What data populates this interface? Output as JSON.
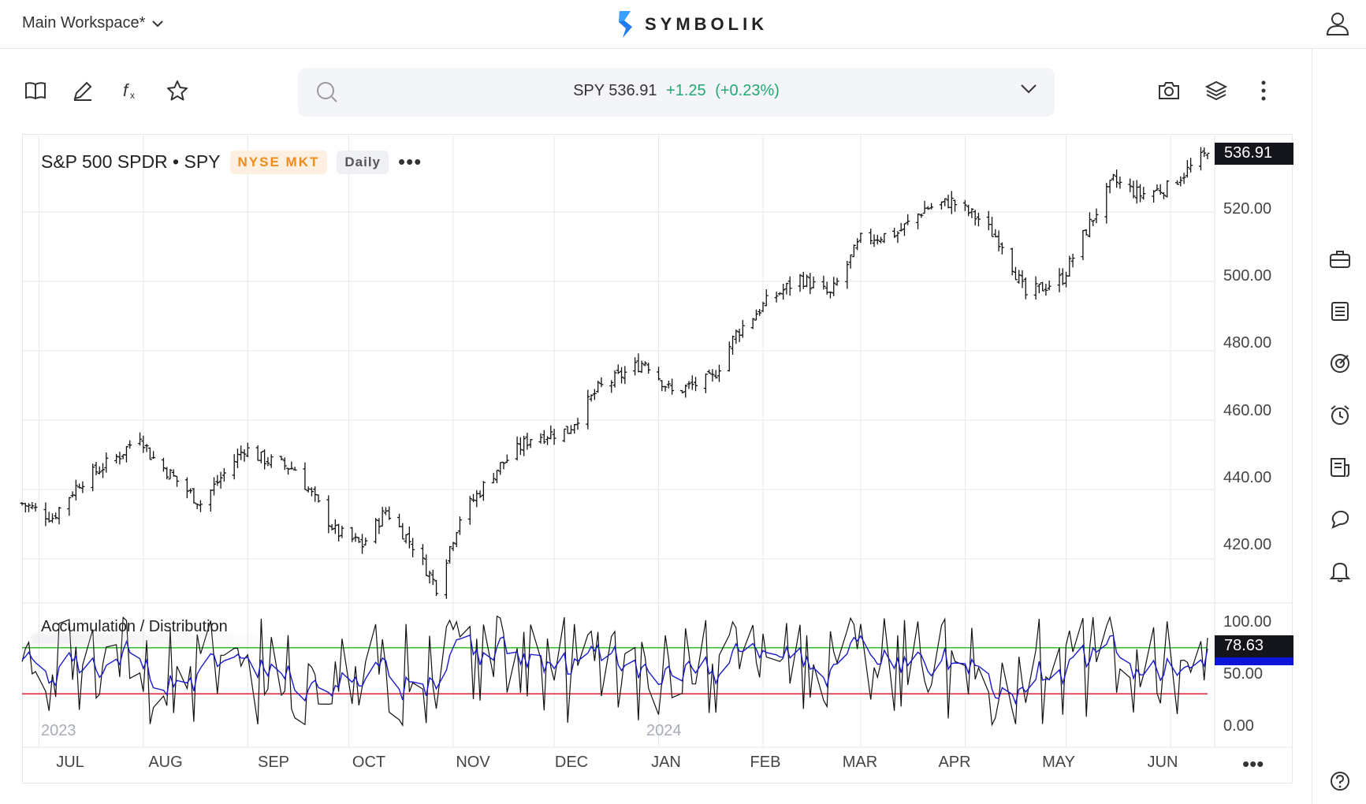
{
  "header": {
    "workspace": "Main Workspace*",
    "logo_text": "SYMBOLIK",
    "icons": {
      "user": "user-icon",
      "workspace_dropdown": "chevron-down-icon",
      "logo": "symbolik-logo-icon"
    }
  },
  "toolbar": {
    "left_tools": [
      "book-icon",
      "pencil-icon",
      "function-icon",
      "star-icon"
    ],
    "search": {
      "icon": "search-icon",
      "symbol": "SPY",
      "price": "536.91",
      "change": "+1.25",
      "change_pct": "(+0.23%)",
      "dropdown": "chevron-down-icon"
    },
    "right_tools": [
      "camera-icon",
      "layers-icon",
      "more-vertical-icon"
    ]
  },
  "sidebar_right": {
    "icons": [
      "briefcase-icon",
      "list-icon",
      "target-icon",
      "alarm-icon",
      "news-icon",
      "chat-icon",
      "bell-icon",
      "help-icon"
    ]
  },
  "chart": {
    "title": "S&P 500 SPDR • SPY",
    "exchange": "NYSE MKT",
    "interval": "Daily",
    "more": "•••",
    "last_price_label": "536.91",
    "price_ticks": [
      "520.00",
      "500.00",
      "480.00",
      "460.00",
      "440.00",
      "420.00"
    ],
    "oscillator": {
      "title": "Accumulation / Distribution",
      "ticks": [
        "100.00",
        "50.00",
        "0.00"
      ],
      "last_value": "78.63",
      "partial_value": "69.15",
      "upper_level": 70,
      "lower_level": 30
    },
    "years": [
      "2023",
      "2024"
    ],
    "months": [
      "JUL",
      "AUG",
      "SEP",
      "OCT",
      "NOV",
      "DEC",
      "JAN",
      "FEB",
      "MAR",
      "APR",
      "MAY",
      "JUN"
    ],
    "axis_more": "•••",
    "colors": {
      "bars": "#111111",
      "osc_line": "#111111",
      "osc_signal": "#1a1acc",
      "upper": "#33bb33",
      "lower": "#dd2233",
      "grid": "#e6e8ef"
    }
  },
  "chart_data": [
    {
      "type": "ohlc",
      "title": "S&P 500 SPDR • SPY",
      "x_range": [
        "2023-06-26",
        "2024-06-12"
      ],
      "ylim": [
        408,
        542
      ],
      "last": 536.91,
      "close_path": [
        [
          "2023-06-26",
          436
        ],
        [
          "2023-07-05",
          432
        ],
        [
          "2023-07-13",
          442
        ],
        [
          "2023-07-25",
          450
        ],
        [
          "2023-07-31",
          456
        ],
        [
          "2023-08-03",
          450
        ],
        [
          "2023-08-18",
          436
        ],
        [
          "2023-08-31",
          452
        ],
        [
          "2023-09-05",
          449
        ],
        [
          "2023-09-15",
          446
        ],
        [
          "2023-09-27",
          428
        ],
        [
          "2023-10-05",
          424
        ],
        [
          "2023-10-12",
          434
        ],
        [
          "2023-10-20",
          424
        ],
        [
          "2023-10-27",
          412
        ],
        [
          "2023-11-03",
          432
        ],
        [
          "2023-11-14",
          446
        ],
        [
          "2023-11-24",
          455
        ],
        [
          "2023-12-05",
          457
        ],
        [
          "2023-12-14",
          469
        ],
        [
          "2023-12-28",
          477
        ],
        [
          "2024-01-05",
          468
        ],
        [
          "2024-01-17",
          472
        ],
        [
          "2024-01-24",
          485
        ],
        [
          "2024-02-02",
          494
        ],
        [
          "2024-02-12",
          501
        ],
        [
          "2024-02-21",
          496
        ],
        [
          "2024-03-01",
          512
        ],
        [
          "2024-03-12",
          514
        ],
        [
          "2024-03-20",
          521
        ],
        [
          "2024-03-28",
          523
        ],
        [
          "2024-04-05",
          518
        ],
        [
          "2024-04-12",
          511
        ],
        [
          "2024-04-19",
          496
        ],
        [
          "2024-04-30",
          501
        ],
        [
          "2024-05-06",
          513
        ],
        [
          "2024-05-15",
          529
        ],
        [
          "2024-05-23",
          525
        ],
        [
          "2024-05-31",
          527
        ],
        [
          "2024-06-12",
          537
        ]
      ]
    },
    {
      "type": "line",
      "title": "Accumulation / Distribution",
      "ylim": [
        0,
        100
      ],
      "levels": [
        70,
        30
      ],
      "last": 78.63,
      "signal_last": 69.15
    }
  ]
}
